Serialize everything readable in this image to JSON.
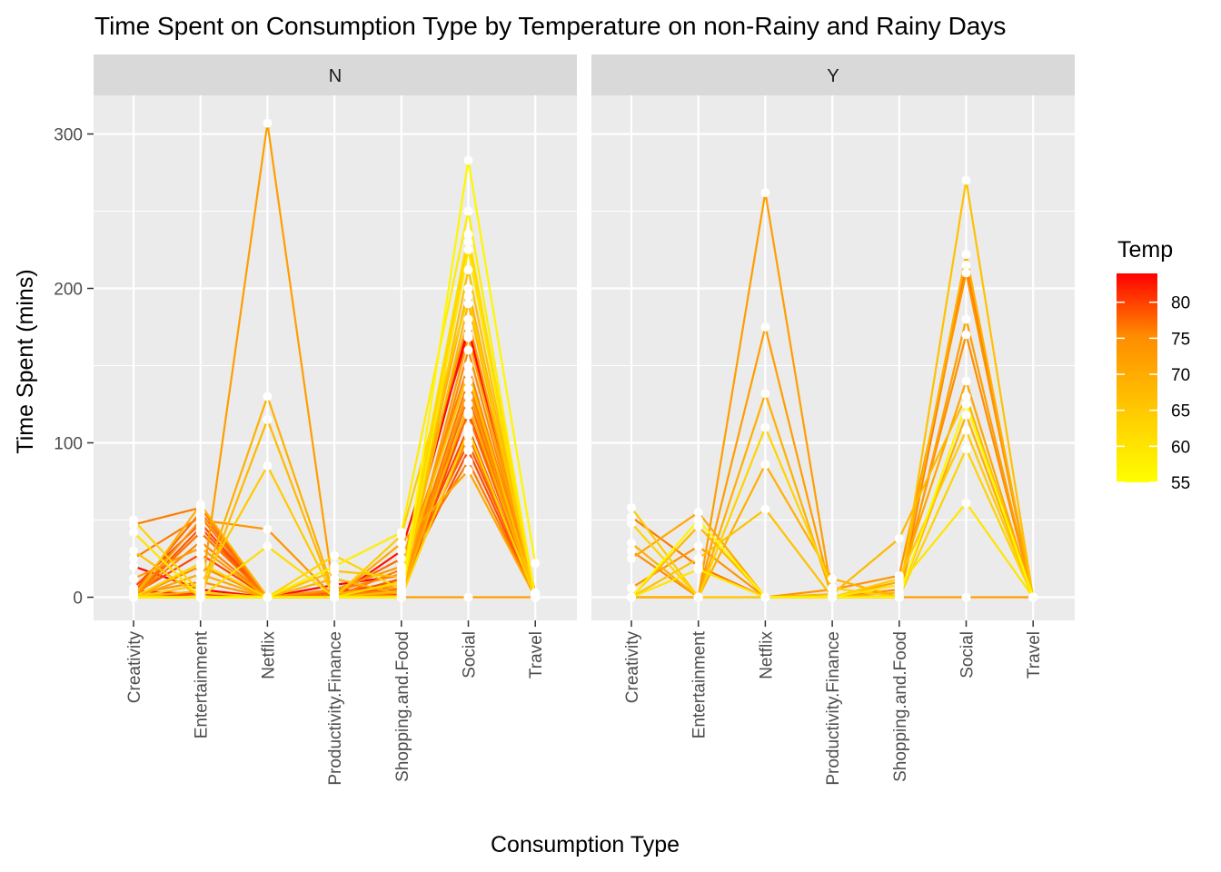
{
  "chart_data": {
    "type": "line",
    "title": "Time Spent on Consumption Type by Temperature on non-Rainy and Rainy Days",
    "xlabel": "Consumption Type",
    "ylabel": "Time Spent (mins)",
    "categories": [
      "Creativity",
      "Entertainment",
      "Netflix",
      "Productivity.Finance",
      "Shopping.and.Food",
      "Social",
      "Travel"
    ],
    "yticks": [
      0,
      100,
      200,
      300
    ],
    "ylim": [
      -15,
      325
    ],
    "grid": true,
    "legend": {
      "title": "Temp",
      "position": "right",
      "ticks": [
        55,
        60,
        65,
        70,
        75,
        80
      ],
      "range": [
        55,
        84
      ],
      "low_color": "#FFFF00",
      "high_color": "#FF0000"
    },
    "panels": [
      {
        "strip": "N",
        "series": [
          {
            "temp": 84,
            "values": [
              20,
              5,
              0,
              8,
              14,
              175,
              2
            ]
          },
          {
            "temp": 82,
            "values": [
              4,
              2,
              0,
              0,
              30,
              170,
              3
            ]
          },
          {
            "temp": 76,
            "values": [
              6,
              48,
              0,
              0,
              2,
              120,
              0
            ]
          },
          {
            "temp": 76,
            "values": [
              2,
              28,
              0,
              3,
              10,
              110,
              0
            ]
          },
          {
            "temp": 75,
            "values": [
              0,
              2,
              0,
              0,
              8,
              95,
              0
            ]
          },
          {
            "temp": 74,
            "values": [
              0,
              45,
              0,
              0,
              12,
              100,
              2
            ]
          },
          {
            "temp": 72,
            "values": [
              3,
              55,
              0,
              2,
              25,
              118,
              1
            ]
          },
          {
            "temp": 71,
            "values": [
              0,
              42,
              0,
              1,
              5,
              130,
              0
            ]
          },
          {
            "temp": 70,
            "values": [
              47,
              58,
              0,
              0,
              18,
              88,
              0
            ]
          },
          {
            "temp": 70,
            "values": [
              25,
              52,
              0,
              0,
              3,
              105,
              0
            ]
          },
          {
            "temp": 70,
            "values": [
              0,
              0,
              0,
              0,
              6,
              140,
              0
            ]
          },
          {
            "temp": 69,
            "values": [
              0,
              36,
              0,
              4,
              15,
              150,
              0
            ]
          },
          {
            "temp": 68,
            "values": [
              0,
              20,
              0,
              0,
              0,
              160,
              0
            ]
          },
          {
            "temp": 67,
            "values": [
              0,
              50,
              44,
              0,
              3,
              135,
              0
            ]
          },
          {
            "temp": 67,
            "values": [
              2,
              10,
              0,
              5,
              20,
              180,
              0
            ]
          },
          {
            "temp": 66,
            "values": [
              12,
              32,
              0,
              0,
              1,
              168,
              2
            ]
          },
          {
            "temp": 66,
            "values": [
              0,
              0,
              307,
              0,
              0,
              0,
              0
            ]
          },
          {
            "temp": 65,
            "values": [
              0,
              15,
              0,
              0,
              35,
              82,
              0
            ]
          },
          {
            "temp": 64,
            "values": [
              0,
              60,
              0,
              12,
              2,
              125,
              0
            ]
          },
          {
            "temp": 64,
            "values": [
              0,
              4,
              130,
              2,
              8,
              200,
              0
            ]
          },
          {
            "temp": 63,
            "values": [
              0,
              0,
              115,
              0,
              4,
              190,
              0
            ]
          },
          {
            "temp": 62,
            "values": [
              30,
              0,
              0,
              17,
              13,
              145,
              0
            ]
          },
          {
            "temp": 62,
            "values": [
              0,
              0,
              0,
              0,
              0,
              212,
              0
            ]
          },
          {
            "temp": 61,
            "values": [
              0,
              8,
              85,
              0,
              40,
              195,
              0
            ]
          },
          {
            "temp": 60,
            "values": [
              0,
              22,
              0,
              27,
              5,
              230,
              0
            ]
          },
          {
            "temp": 60,
            "values": [
              50,
              3,
              0,
              0,
              0,
              108,
              0
            ]
          },
          {
            "temp": 59,
            "values": [
              0,
              0,
              33,
              0,
              10,
              235,
              0
            ]
          },
          {
            "temp": 58,
            "values": [
              42,
              0,
              0,
              0,
              0,
              225,
              0
            ]
          },
          {
            "temp": 57,
            "values": [
              0,
              0,
              0,
              20,
              42,
              250,
              0
            ]
          },
          {
            "temp": 56,
            "values": [
              0,
              0,
              0,
              0,
              0,
              283,
              22
            ]
          }
        ]
      },
      {
        "strip": "Y",
        "series": [
          {
            "temp": 70,
            "values": [
              52,
              20,
              0,
              0,
              0,
              215,
              0
            ]
          },
          {
            "temp": 68,
            "values": [
              30,
              0,
              0,
              0,
              5,
              170,
              0
            ]
          },
          {
            "temp": 67,
            "values": [
              6,
              33,
              0,
              5,
              14,
              210,
              0
            ]
          },
          {
            "temp": 66,
            "values": [
              0,
              0,
              262,
              0,
              0,
              0,
              0
            ]
          },
          {
            "temp": 66,
            "values": [
              0,
              0,
              175,
              0,
              0,
              180,
              0
            ]
          },
          {
            "temp": 65,
            "values": [
              25,
              55,
              0,
              0,
              10,
              140,
              0
            ]
          },
          {
            "temp": 64,
            "values": [
              0,
              0,
              86,
              12,
              0,
              118,
              0
            ]
          },
          {
            "temp": 64,
            "values": [
              35,
              0,
              132,
              0,
              3,
              222,
              0
            ]
          },
          {
            "temp": 63,
            "values": [
              0,
              46,
              0,
              2,
              38,
              130,
              0
            ]
          },
          {
            "temp": 62,
            "values": [
              0,
              25,
              57,
              0,
              0,
              270,
              0
            ]
          },
          {
            "temp": 61,
            "values": [
              58,
              0,
              0,
              0,
              12,
              108,
              0
            ]
          },
          {
            "temp": 60,
            "values": [
              48,
              0,
              110,
              6,
              0,
              96,
              0
            ]
          },
          {
            "temp": 58,
            "values": [
              0,
              18,
              0,
              0,
              8,
              61,
              0
            ]
          },
          {
            "temp": 56,
            "values": [
              0,
              50,
              0,
              0,
              0,
              125,
              0
            ]
          }
        ]
      }
    ]
  }
}
